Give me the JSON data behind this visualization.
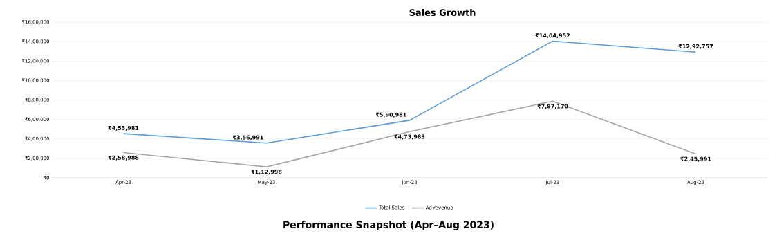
{
  "chart_data": {
    "type": "line",
    "title": "Sales Growth",
    "annotations": [
      "Performance Snapshot (Apr–Aug 2023)"
    ],
    "categories": [
      "Apr-23",
      "May-23",
      "Jun-23",
      "Jul-23",
      "Aug-23"
    ],
    "series": [
      {
        "name": "Total Sales",
        "color": "#5b9bd5",
        "values": [
          453981,
          356991,
          590981,
          1404952,
          1292757
        ],
        "value_labels": [
          "₹4,53,981",
          "₹3,56,991",
          "₹5,90,981",
          "₹14,04,952",
          "₹12,92,757"
        ]
      },
      {
        "name": "Ad revenue",
        "color": "#a5a5a5",
        "values": [
          258988,
          112998,
          473983,
          787170,
          245991
        ],
        "value_labels": [
          "₹2,58,988",
          "₹1,12,998",
          "₹4,73,983",
          "₹7,87,170",
          "₹2,45,991"
        ]
      }
    ],
    "ylim": [
      0,
      1600000
    ],
    "yticks": [
      {
        "value": 0,
        "label": "₹0"
      },
      {
        "value": 200000,
        "label": "₹2,00,000"
      },
      {
        "value": 400000,
        "label": "₹4,00,000"
      },
      {
        "value": 600000,
        "label": "₹6,00,000"
      },
      {
        "value": 800000,
        "label": "₹8,00,000"
      },
      {
        "value": 1000000,
        "label": "₹10,00,000"
      },
      {
        "value": 1200000,
        "label": "₹12,00,000"
      },
      {
        "value": 1400000,
        "label": "₹14,00,000"
      },
      {
        "value": 1600000,
        "label": "₹16,00,000"
      }
    ],
    "grid": "y",
    "legend": "bottom",
    "marker": "none",
    "line_style": "solid"
  }
}
